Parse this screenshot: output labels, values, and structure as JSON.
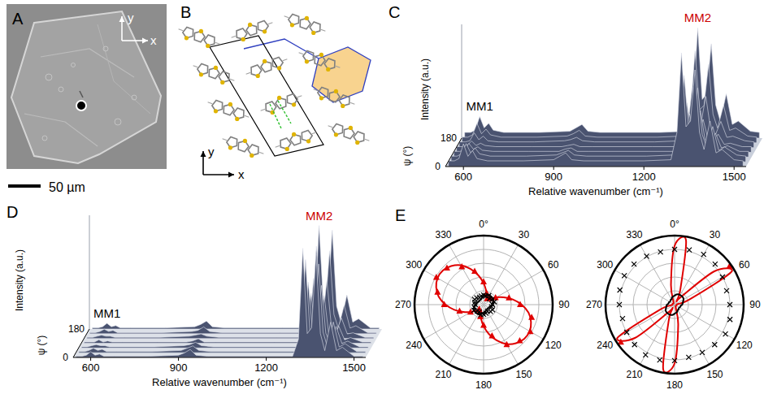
{
  "chart_data": [
    {
      "type": "image",
      "label": "A",
      "axis_x": "x",
      "axis_y": "y",
      "scale_bar": "50 µm"
    },
    {
      "type": "structure",
      "label": "B",
      "axis_x": "x",
      "axis_y": "y"
    },
    {
      "type": "waterfall",
      "label": "C",
      "x_label": "Relative wavenumber (cm⁻¹)",
      "y_label": "ψ (°)",
      "z_label": "Intensity (a.u.)",
      "xlim": [
        540,
        1540
      ],
      "xticks": [
        600,
        900,
        1200,
        1500
      ],
      "ylim": [
        0,
        180
      ],
      "yticks": [
        0,
        180
      ],
      "zlim": [
        0,
        100
      ],
      "color": "#4a5370",
      "x": [
        550,
        570,
        585,
        600,
        615,
        630,
        645,
        680,
        800,
        900,
        920,
        940,
        960,
        1000,
        1200,
        1290,
        1310,
        1325,
        1340,
        1355,
        1370,
        1385,
        1400,
        1420,
        1440,
        1460,
        1500,
        1530
      ],
      "series": [
        {
          "psi": 0,
          "values": [
            5,
            5,
            7,
            20,
            9,
            14,
            7,
            5,
            5,
            6,
            9,
            12,
            6,
            5,
            5,
            6,
            30,
            100,
            35,
            40,
            85,
            30,
            15,
            40,
            12,
            15,
            6,
            5
          ]
        },
        {
          "psi": 30,
          "values": [
            5,
            5,
            7,
            16,
            8,
            12,
            7,
            5,
            5,
            6,
            8,
            10,
            6,
            5,
            5,
            6,
            24,
            76,
            28,
            31,
            65,
            24,
            13,
            31,
            10,
            13,
            6,
            5
          ]
        },
        {
          "psi": 60,
          "values": [
            5,
            5,
            6,
            12,
            7,
            9,
            6,
            5,
            5,
            5,
            7,
            8,
            5,
            5,
            5,
            5,
            16,
            48,
            19,
            21,
            41,
            16,
            10,
            21,
            8,
            10,
            5,
            5
          ]
        },
        {
          "psi": 90,
          "values": [
            5,
            5,
            6,
            10,
            6,
            8,
            6,
            5,
            5,
            5,
            6,
            7,
            5,
            5,
            5,
            5,
            13,
            34,
            14,
            16,
            29,
            13,
            8,
            16,
            7,
            8,
            5,
            5
          ]
        },
        {
          "psi": 120,
          "values": [
            5,
            5,
            6,
            13,
            7,
            10,
            6,
            5,
            5,
            6,
            7,
            9,
            6,
            5,
            5,
            6,
            18,
            53,
            20,
            23,
            45,
            18,
            10,
            23,
            9,
            10,
            6,
            5
          ]
        },
        {
          "psi": 150,
          "values": [
            5,
            5,
            7,
            17,
            8,
            12,
            7,
            5,
            5,
            6,
            8,
            11,
            6,
            5,
            5,
            6,
            25,
            81,
            29,
            33,
            69,
            25,
            13,
            33,
            11,
            13,
            6,
            5
          ]
        },
        {
          "psi": 180,
          "values": [
            5,
            5,
            7,
            19,
            9,
            13,
            7,
            5,
            5,
            6,
            9,
            12,
            6,
            5,
            5,
            6,
            29,
            97,
            34,
            39,
            83,
            29,
            15,
            39,
            12,
            15,
            6,
            5
          ]
        }
      ],
      "annotations": [
        {
          "text": "MM1",
          "x": 600,
          "color": "#000000"
        },
        {
          "text": "MM2",
          "x": 1325,
          "color": "#cc0000"
        }
      ]
    },
    {
      "type": "waterfall",
      "label": "D",
      "x_label": "Relative wavenumber (cm⁻¹)",
      "y_label": "ψ (°)",
      "z_label": "Intensity (a.u.)",
      "xlim": [
        540,
        1540
      ],
      "xticks": [
        600,
        900,
        1200,
        1500
      ],
      "ylim": [
        0,
        180
      ],
      "yticks": [
        0,
        180
      ],
      "zlim": [
        0,
        100
      ],
      "color": "#4a5370",
      "x": [
        550,
        570,
        585,
        600,
        615,
        630,
        645,
        680,
        800,
        900,
        920,
        940,
        960,
        1000,
        1200,
        1290,
        1310,
        1325,
        1340,
        1355,
        1370,
        1385,
        1400,
        1420,
        1440,
        1460,
        1500,
        1530
      ],
      "series": [
        {
          "psi": 0,
          "values": [
            1,
            1,
            2,
            5,
            2,
            3,
            1,
            1,
            1,
            2,
            4,
            7,
            2,
            1,
            1,
            1,
            16,
            96,
            21,
            26,
            91,
            21,
            6,
            31,
            6,
            9,
            1,
            1
          ]
        },
        {
          "psi": 30,
          "values": [
            1,
            1,
            2,
            4,
            2,
            3,
            1,
            1,
            1,
            2,
            4,
            6,
            2,
            1,
            1,
            1,
            14,
            82,
            18,
            22,
            78,
            18,
            5,
            27,
            5,
            8,
            1,
            1
          ]
        },
        {
          "psi": 60,
          "values": [
            1,
            1,
            2,
            3,
            2,
            2,
            1,
            1,
            1,
            2,
            3,
            5,
            2,
            1,
            1,
            1,
            10,
            58,
            13,
            16,
            55,
            13,
            4,
            19,
            4,
            6,
            1,
            1
          ]
        },
        {
          "psi": 90,
          "values": [
            1,
            1,
            1,
            3,
            1,
            2,
            1,
            1,
            1,
            1,
            2,
            4,
            1,
            1,
            1,
            1,
            8,
            44,
            10,
            12,
            42,
            10,
            3,
            15,
            3,
            5,
            1,
            1
          ]
        },
        {
          "psi": 120,
          "values": [
            1,
            1,
            2,
            3,
            2,
            2,
            1,
            1,
            1,
            2,
            3,
            4,
            2,
            1,
            1,
            1,
            9,
            53,
            12,
            15,
            51,
            12,
            4,
            18,
            4,
            5,
            1,
            1
          ]
        },
        {
          "psi": 150,
          "values": [
            1,
            1,
            2,
            4,
            2,
            3,
            1,
            1,
            1,
            2,
            3,
            6,
            2,
            1,
            1,
            1,
            13,
            77,
            17,
            21,
            73,
            17,
            5,
            25,
            5,
            7,
            1,
            1
          ]
        },
        {
          "psi": 180,
          "values": [
            1,
            1,
            2,
            5,
            2,
            3,
            1,
            1,
            1,
            2,
            4,
            7,
            2,
            1,
            1,
            1,
            15,
            91,
            20,
            25,
            87,
            20,
            6,
            30,
            6,
            9,
            1,
            1
          ]
        }
      ],
      "annotations": [
        {
          "text": "MM1",
          "x": 600,
          "color": "#000000"
        },
        {
          "text": "MM2",
          "x": 1325,
          "color": "#cc0000"
        }
      ]
    },
    {
      "type": "polar",
      "label": "E",
      "rlim": [
        0,
        1
      ],
      "rgrid": [
        0.2,
        0.4,
        0.6,
        0.8
      ],
      "theta_ticks": [
        {
          "value": 0,
          "label": "0°"
        },
        30,
        60,
        90,
        120,
        150,
        180,
        210,
        240,
        270,
        300,
        330
      ],
      "series": [
        {
          "type": "scatter",
          "marker": "triangle",
          "color": "#e00000",
          "theta": [
            0,
            15,
            30,
            45,
            60,
            75,
            90,
            105,
            120,
            135,
            150,
            165,
            180,
            195,
            210,
            225,
            240,
            255,
            270,
            285,
            300,
            315,
            330,
            345
          ],
          "values": [
            0.33,
            0.17,
            0.1,
            0.12,
            0.2,
            0.38,
            0.53,
            0.72,
            0.78,
            0.74,
            0.67,
            0.47,
            0.3,
            0.18,
            0.11,
            0.09,
            0.22,
            0.36,
            0.57,
            0.69,
            0.79,
            0.75,
            0.63,
            0.5
          ]
        },
        {
          "type": "line",
          "color": "#e00000",
          "theta": [
            0,
            10,
            20,
            30,
            40,
            50,
            60,
            70,
            80,
            90,
            100,
            110,
            120,
            130,
            140,
            150,
            160,
            170,
            180,
            190,
            200,
            210,
            220,
            230,
            240,
            250,
            260,
            270,
            280,
            290,
            300,
            310,
            320,
            330,
            340,
            350
          ],
          "values": [
            0.31,
            0.21,
            0.13,
            0.09,
            0.09,
            0.13,
            0.21,
            0.31,
            0.43,
            0.55,
            0.66,
            0.73,
            0.77,
            0.77,
            0.73,
            0.66,
            0.55,
            0.43,
            0.31,
            0.21,
            0.13,
            0.09,
            0.09,
            0.13,
            0.21,
            0.31,
            0.43,
            0.55,
            0.66,
            0.73,
            0.77,
            0.77,
            0.73,
            0.66,
            0.55,
            0.43
          ]
        },
        {
          "type": "scatter",
          "marker": "cross",
          "color": "#000000",
          "theta": [
            0,
            15,
            30,
            45,
            60,
            75,
            90,
            105,
            120,
            135,
            150,
            165,
            180,
            195,
            210,
            225,
            240,
            255,
            270,
            285,
            300,
            315,
            330,
            345
          ],
          "values": [
            0.14,
            0.13,
            0.15,
            0.12,
            0.14,
            0.16,
            0.13,
            0.12,
            0.15,
            0.14,
            0.11,
            0.13,
            0.14,
            0.15,
            0.12,
            0.13,
            0.16,
            0.14,
            0.12,
            0.13,
            0.15,
            0.14,
            0.12,
            0.13
          ]
        },
        {
          "type": "line",
          "color": "#000000",
          "theta": [
            0,
            10,
            20,
            30,
            40,
            50,
            60,
            70,
            80,
            90,
            100,
            110,
            120,
            130,
            140,
            150,
            160,
            170,
            180,
            190,
            200,
            210,
            220,
            230,
            240,
            250,
            260,
            270,
            280,
            290,
            300,
            310,
            320,
            330,
            340,
            350
          ],
          "values": [
            0.12,
            0.13,
            0.15,
            0.16,
            0.16,
            0.16,
            0.16,
            0.15,
            0.13,
            0.12,
            0.11,
            0.09,
            0.09,
            0.08,
            0.08,
            0.09,
            0.09,
            0.11,
            0.12,
            0.13,
            0.15,
            0.16,
            0.16,
            0.16,
            0.16,
            0.15,
            0.13,
            0.12,
            0.11,
            0.09,
            0.09,
            0.08,
            0.08,
            0.09,
            0.09,
            0.11
          ]
        }
      ]
    },
    {
      "type": "polar",
      "rlim": [
        0,
        1
      ],
      "rgrid": [
        0.2,
        0.4,
        0.6,
        0.8
      ],
      "theta_ticks": [
        {
          "value": 0,
          "label": "0°"
        },
        30,
        60,
        90,
        120,
        150,
        180,
        210,
        240,
        270,
        300,
        330
      ],
      "series": [
        {
          "type": "scatter",
          "marker": "triangle",
          "color": "#e00000",
          "theta": [
            55,
            235
          ],
          "values": [
            0.97,
            0.95
          ]
        },
        {
          "type": "line",
          "color": "#e00000",
          "theta": [
            0,
            10,
            20,
            30,
            40,
            50,
            60,
            70,
            80,
            90,
            100,
            110,
            120,
            130,
            140,
            150,
            160,
            170,
            180,
            190,
            200,
            210,
            220,
            230,
            240,
            250,
            260,
            270,
            280,
            290,
            300,
            310,
            320,
            330,
            340,
            350
          ],
          "values": [
            0.85,
            0.95,
            0.25,
            0.06,
            0.15,
            0.75,
            0.95,
            0.25,
            0.05,
            0.03,
            0.03,
            0.03,
            0.03,
            0.03,
            0.03,
            0.03,
            0.05,
            0.3,
            0.85,
            0.95,
            0.25,
            0.06,
            0.15,
            0.75,
            0.95,
            0.25,
            0.05,
            0.03,
            0.03,
            0.03,
            0.03,
            0.03,
            0.03,
            0.03,
            0.05,
            0.3
          ]
        },
        {
          "type": "scatter",
          "marker": "cross",
          "color": "#000000",
          "theta": [
            0,
            15,
            30,
            45,
            60,
            75,
            90,
            105,
            120,
            135,
            150,
            165,
            180,
            195,
            210,
            225,
            240,
            255,
            270,
            285,
            300,
            315,
            330,
            345
          ],
          "values": [
            0.8,
            0.82,
            0.84,
            0.83,
            0.8,
            0.78,
            0.8,
            0.83,
            0.85,
            0.82,
            0.8,
            0.79,
            0.81,
            0.83,
            0.84,
            0.82,
            0.8,
            0.78,
            0.8,
            0.82,
            0.84,
            0.83,
            0.81,
            0.79
          ]
        },
        {
          "type": "line",
          "color": "#000000",
          "theta": [
            0,
            10,
            20,
            30,
            40,
            50,
            60,
            70,
            80,
            90,
            100,
            110,
            120,
            130,
            140,
            150,
            160,
            170,
            180,
            190,
            200,
            210,
            220,
            230,
            240,
            250,
            260,
            270,
            280,
            290,
            300,
            310,
            320,
            330,
            340,
            350
          ],
          "values": [
            0.13,
            0.15,
            0.16,
            0.16,
            0.16,
            0.16,
            0.15,
            0.13,
            0.12,
            0.11,
            0.09,
            0.09,
            0.08,
            0.08,
            0.09,
            0.09,
            0.11,
            0.12,
            0.13,
            0.15,
            0.16,
            0.16,
            0.16,
            0.16,
            0.15,
            0.13,
            0.12,
            0.11,
            0.09,
            0.09,
            0.08,
            0.08,
            0.09,
            0.09,
            0.11,
            0.12
          ]
        }
      ]
    }
  ]
}
